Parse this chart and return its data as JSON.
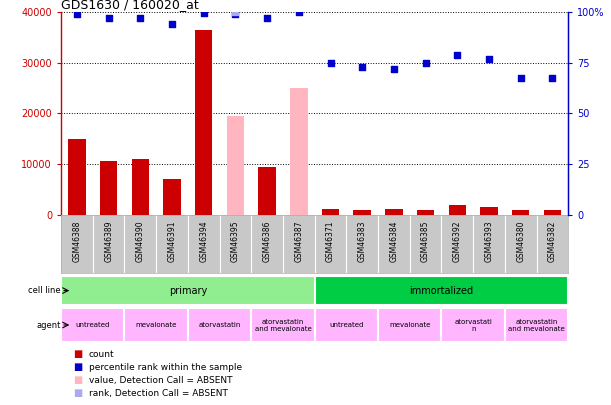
{
  "title": "GDS1630 / 160020_at",
  "samples": [
    "GSM46388",
    "GSM46389",
    "GSM46390",
    "GSM46391",
    "GSM46394",
    "GSM46395",
    "GSM46386",
    "GSM46387",
    "GSM46371",
    "GSM46383",
    "GSM46384",
    "GSM46385",
    "GSM46392",
    "GSM46393",
    "GSM46380",
    "GSM46382"
  ],
  "count_values": [
    15000,
    10500,
    11000,
    7000,
    36500,
    0,
    9500,
    0,
    1200,
    1000,
    1200,
    1000,
    2000,
    1500,
    1000,
    1000
  ],
  "count_absent": [
    false,
    false,
    false,
    false,
    false,
    true,
    false,
    true,
    false,
    false,
    false,
    false,
    false,
    false,
    false,
    false
  ],
  "absent_values": [
    0,
    0,
    0,
    0,
    0,
    19500,
    0,
    25000,
    0,
    0,
    0,
    0,
    0,
    0,
    0,
    0
  ],
  "percentile_values": [
    99,
    97,
    97,
    94,
    99.5,
    99,
    97,
    100,
    75,
    73,
    72,
    75,
    79,
    77,
    67.5,
    67.5
  ],
  "absent_rank_value_idx": 5,
  "absent_rank_pct": 100,
  "ylim_left": [
    0,
    40000
  ],
  "ylim_right": [
    0,
    100
  ],
  "yticks_left": [
    0,
    10000,
    20000,
    30000,
    40000
  ],
  "ytick_labels_left": [
    "0",
    "10000",
    "20000",
    "30000",
    "40000"
  ],
  "yticks_right": [
    0,
    25,
    50,
    75,
    100
  ],
  "ytick_labels_right": [
    "0",
    "25",
    "50",
    "75",
    "100%"
  ],
  "cell_line_groups": [
    {
      "label": "primary",
      "start": 0,
      "end": 8,
      "color": "#90EE90"
    },
    {
      "label": "immortalized",
      "start": 8,
      "end": 16,
      "color": "#00CC44"
    }
  ],
  "agent_groups": [
    {
      "label": "untreated",
      "start": 0,
      "end": 2,
      "color": "#FFB6FF"
    },
    {
      "label": "mevalonate",
      "start": 2,
      "end": 4,
      "color": "#FFB6FF"
    },
    {
      "label": "atorvastatin",
      "start": 4,
      "end": 6,
      "color": "#FFB6FF"
    },
    {
      "label": "atorvastatin\nand mevalonate",
      "start": 6,
      "end": 8,
      "color": "#FFB6FF"
    },
    {
      "label": "untreated",
      "start": 8,
      "end": 10,
      "color": "#FFB6FF"
    },
    {
      "label": "mevalonate",
      "start": 10,
      "end": 12,
      "color": "#FFB6FF"
    },
    {
      "label": "atorvastati\nn",
      "start": 12,
      "end": 14,
      "color": "#FFB6FF"
    },
    {
      "label": "atorvastatin\nand mevalonate",
      "start": 14,
      "end": 16,
      "color": "#FFB6FF"
    }
  ],
  "bar_color_present": "#CC0000",
  "bar_color_absent": "#FFB6C1",
  "dot_color_present": "#0000CC",
  "dot_color_absent": "#AAAAEE",
  "bar_width": 0.55,
  "background_color": "#FFFFFF",
  "tick_color_left": "#CC0000",
  "tick_color_right": "#0000CC",
  "sample_bg_color": "#C8C8C8",
  "legend_items": [
    {
      "color": "#CC0000",
      "label": "count"
    },
    {
      "color": "#0000CC",
      "label": "percentile rank within the sample"
    },
    {
      "color": "#FFB6C1",
      "label": "value, Detection Call = ABSENT"
    },
    {
      "color": "#AAAAEE",
      "label": "rank, Detection Call = ABSENT"
    }
  ]
}
